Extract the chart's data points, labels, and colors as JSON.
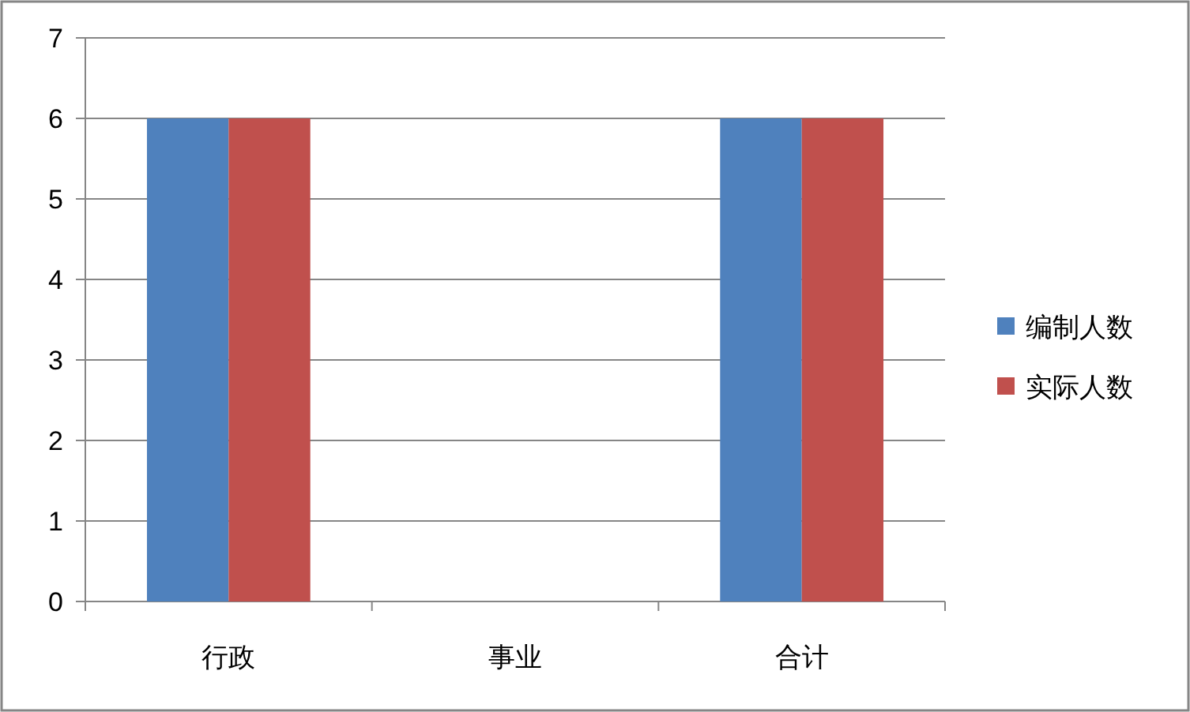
{
  "chart_data": {
    "type": "bar",
    "categories": [
      "行政",
      "事业",
      "合计"
    ],
    "series": [
      {
        "name": "编制人数",
        "color": "#4f81bd",
        "values": [
          6,
          0,
          6
        ]
      },
      {
        "name": "实际人数",
        "color": "#c0504d",
        "values": [
          6,
          0,
          6
        ]
      }
    ],
    "ylim": [
      0,
      7
    ],
    "yticks": [
      0,
      1,
      2,
      3,
      4,
      5,
      6,
      7
    ],
    "grid": "y",
    "legend": "right"
  }
}
